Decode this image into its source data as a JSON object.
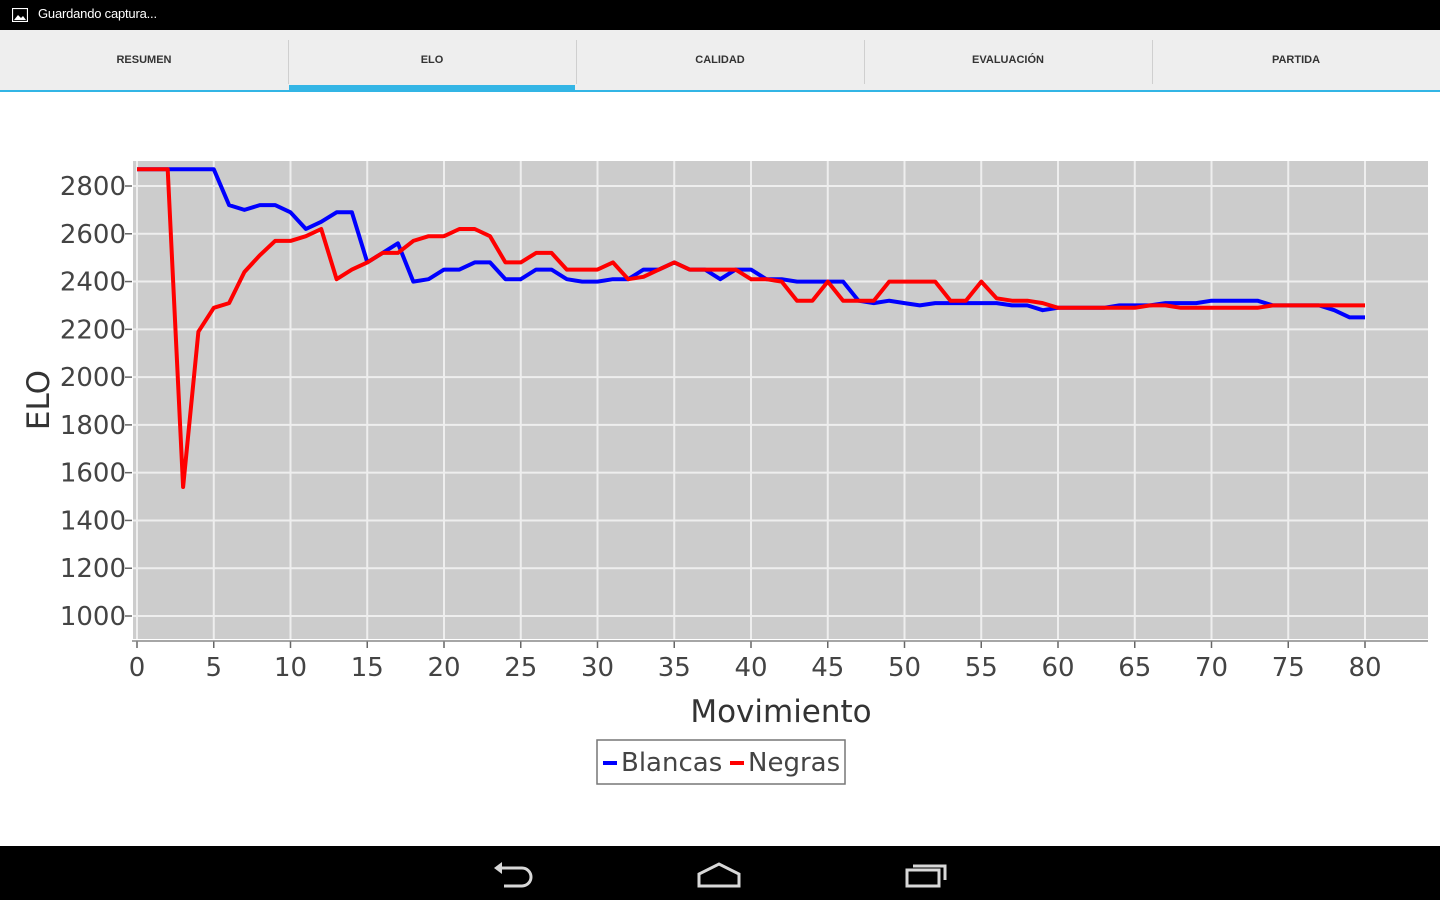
{
  "status_bar": {
    "notification_text": "Guardando captura...",
    "notification_icon": "image-icon"
  },
  "tabs": [
    {
      "label": "RESUMEN",
      "selected": false
    },
    {
      "label": "ELO",
      "selected": true
    },
    {
      "label": "CALIDAD",
      "selected": false
    },
    {
      "label": "EVALUACIÓN",
      "selected": false
    },
    {
      "label": "PARTIDA",
      "selected": false
    }
  ],
  "colors": {
    "accent": "#33b5e5",
    "plot_background": "#cccccc",
    "grid": "#eeeeee",
    "blancas": "#0000ff",
    "negras": "#ff0000"
  },
  "chart_data": {
    "type": "line",
    "title": "",
    "xlabel": "Movimiento",
    "ylabel": "ELO",
    "xlim": [
      0,
      84
    ],
    "ylim": [
      900,
      2900
    ],
    "xticks": [
      0,
      5,
      10,
      15,
      20,
      25,
      30,
      35,
      40,
      45,
      50,
      55,
      60,
      65,
      70,
      75,
      80
    ],
    "yticks": [
      1000,
      1200,
      1400,
      1600,
      1800,
      2000,
      2200,
      2400,
      2600,
      2800
    ],
    "grid": true,
    "legend_position": "bottom-center",
    "series": [
      {
        "name": "Blancas",
        "color": "#0000ff",
        "points": [
          [
            0,
            2870
          ],
          [
            1,
            2870
          ],
          [
            2,
            2870
          ],
          [
            3,
            2870
          ],
          [
            4,
            2870
          ],
          [
            5,
            2870
          ],
          [
            6,
            2720
          ],
          [
            7,
            2700
          ],
          [
            8,
            2720
          ],
          [
            9,
            2720
          ],
          [
            10,
            2690
          ],
          [
            11,
            2620
          ],
          [
            12,
            2650
          ],
          [
            13,
            2690
          ],
          [
            14,
            2690
          ],
          [
            15,
            2480
          ],
          [
            16,
            2520
          ],
          [
            17,
            2560
          ],
          [
            18,
            2400
          ],
          [
            19,
            2410
          ],
          [
            20,
            2450
          ],
          [
            21,
            2450
          ],
          [
            22,
            2480
          ],
          [
            23,
            2480
          ],
          [
            24,
            2410
          ],
          [
            25,
            2410
          ],
          [
            26,
            2450
          ],
          [
            27,
            2450
          ],
          [
            28,
            2410
          ],
          [
            29,
            2400
          ],
          [
            30,
            2400
          ],
          [
            31,
            2410
          ],
          [
            32,
            2410
          ],
          [
            33,
            2450
          ],
          [
            34,
            2450
          ],
          [
            35,
            2480
          ],
          [
            36,
            2450
          ],
          [
            37,
            2450
          ],
          [
            38,
            2410
          ],
          [
            39,
            2450
          ],
          [
            40,
            2450
          ],
          [
            41,
            2410
          ],
          [
            42,
            2410
          ],
          [
            43,
            2400
          ],
          [
            44,
            2400
          ],
          [
            45,
            2400
          ],
          [
            46,
            2400
          ],
          [
            47,
            2320
          ],
          [
            48,
            2310
          ],
          [
            49,
            2320
          ],
          [
            50,
            2310
          ],
          [
            51,
            2300
          ],
          [
            52,
            2310
          ],
          [
            53,
            2310
          ],
          [
            54,
            2310
          ],
          [
            55,
            2310
          ],
          [
            56,
            2310
          ],
          [
            57,
            2300
          ],
          [
            58,
            2300
          ],
          [
            59,
            2280
          ],
          [
            60,
            2290
          ],
          [
            61,
            2290
          ],
          [
            62,
            2290
          ],
          [
            63,
            2290
          ],
          [
            64,
            2300
          ],
          [
            65,
            2300
          ],
          [
            66,
            2300
          ],
          [
            67,
            2310
          ],
          [
            68,
            2310
          ],
          [
            69,
            2310
          ],
          [
            70,
            2320
          ],
          [
            71,
            2320
          ],
          [
            72,
            2320
          ],
          [
            73,
            2320
          ],
          [
            74,
            2300
          ],
          [
            75,
            2300
          ],
          [
            76,
            2300
          ],
          [
            77,
            2300
          ],
          [
            78,
            2280
          ],
          [
            79,
            2250
          ],
          [
            80,
            2250
          ]
        ]
      },
      {
        "name": "Negras",
        "color": "#ff0000",
        "points": [
          [
            0,
            2870
          ],
          [
            1,
            2870
          ],
          [
            2,
            2870
          ],
          [
            3,
            1540
          ],
          [
            4,
            2190
          ],
          [
            5,
            2290
          ],
          [
            6,
            2310
          ],
          [
            7,
            2440
          ],
          [
            8,
            2510
          ],
          [
            9,
            2570
          ],
          [
            10,
            2570
          ],
          [
            11,
            2590
          ],
          [
            12,
            2620
          ],
          [
            13,
            2410
          ],
          [
            14,
            2450
          ],
          [
            15,
            2480
          ],
          [
            16,
            2520
          ],
          [
            17,
            2520
          ],
          [
            18,
            2570
          ],
          [
            19,
            2590
          ],
          [
            20,
            2590
          ],
          [
            21,
            2620
          ],
          [
            22,
            2620
          ],
          [
            23,
            2590
          ],
          [
            24,
            2480
          ],
          [
            25,
            2480
          ],
          [
            26,
            2520
          ],
          [
            27,
            2520
          ],
          [
            28,
            2450
          ],
          [
            29,
            2450
          ],
          [
            30,
            2450
          ],
          [
            31,
            2480
          ],
          [
            32,
            2410
          ],
          [
            33,
            2420
          ],
          [
            34,
            2450
          ],
          [
            35,
            2480
          ],
          [
            36,
            2450
          ],
          [
            37,
            2450
          ],
          [
            38,
            2450
          ],
          [
            39,
            2450
          ],
          [
            40,
            2410
          ],
          [
            41,
            2410
          ],
          [
            42,
            2400
          ],
          [
            43,
            2320
          ],
          [
            44,
            2320
          ],
          [
            45,
            2400
          ],
          [
            46,
            2320
          ],
          [
            47,
            2320
          ],
          [
            48,
            2320
          ],
          [
            49,
            2400
          ],
          [
            50,
            2400
          ],
          [
            51,
            2400
          ],
          [
            52,
            2400
          ],
          [
            53,
            2320
          ],
          [
            54,
            2320
          ],
          [
            55,
            2400
          ],
          [
            56,
            2330
          ],
          [
            57,
            2320
          ],
          [
            58,
            2320
          ],
          [
            59,
            2310
          ],
          [
            60,
            2290
          ],
          [
            61,
            2290
          ],
          [
            62,
            2290
          ],
          [
            63,
            2290
          ],
          [
            64,
            2290
          ],
          [
            65,
            2290
          ],
          [
            66,
            2300
          ],
          [
            67,
            2300
          ],
          [
            68,
            2290
          ],
          [
            69,
            2290
          ],
          [
            70,
            2290
          ],
          [
            71,
            2290
          ],
          [
            72,
            2290
          ],
          [
            73,
            2290
          ],
          [
            74,
            2300
          ],
          [
            75,
            2300
          ],
          [
            76,
            2300
          ],
          [
            77,
            2300
          ],
          [
            78,
            2300
          ],
          [
            79,
            2300
          ],
          [
            80,
            2300
          ]
        ]
      }
    ]
  },
  "nav_bar": {
    "buttons": [
      {
        "name": "back-icon"
      },
      {
        "name": "home-icon"
      },
      {
        "name": "recent-apps-icon"
      }
    ]
  }
}
